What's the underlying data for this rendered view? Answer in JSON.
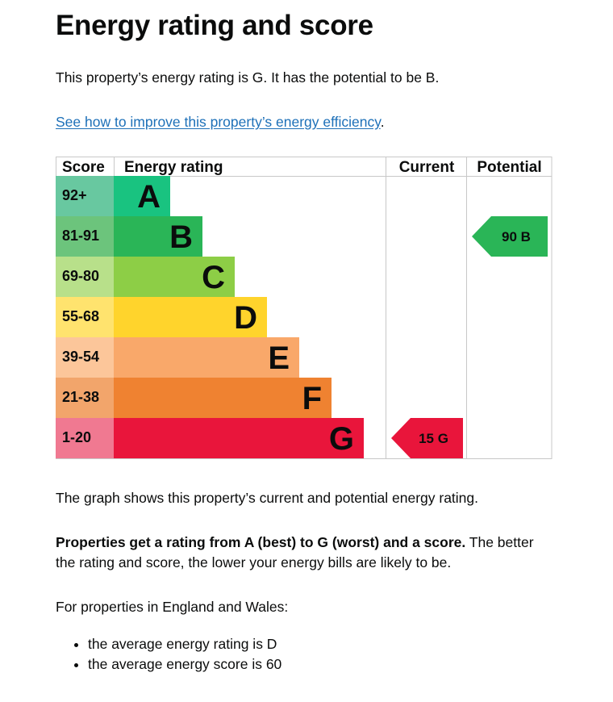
{
  "page": {
    "title": "Energy rating and score",
    "intro": "This property’s energy rating is G. It has the potential to be B.",
    "improve_link": "See how to improve this property’s energy efficiency",
    "improve_link_suffix": ".",
    "graph_description": "The graph shows this property’s current and potential energy rating.",
    "properties_bold": "Properties get a rating from A (best) to G (worst) and a score.",
    "properties_rest": " The better the rating and score, the lower your energy bills are likely to be.",
    "region_intro": "For properties in England and Wales:",
    "averages": [
      "the average energy rating is D",
      "the average energy score is 60"
    ]
  },
  "chart_data": {
    "type": "table",
    "headers": {
      "score": "Score",
      "rating": "Energy rating",
      "current": "Current",
      "potential": "Potential"
    },
    "bands": [
      {
        "score": "92+",
        "letter": "A",
        "score_bg": "#68c8a0",
        "bar": "#19c380"
      },
      {
        "score": "81-91",
        "letter": "B",
        "score_bg": "#6cc47c",
        "bar": "#2ab557"
      },
      {
        "score": "69-80",
        "letter": "C",
        "score_bg": "#b8e08a",
        "bar": "#8dce46"
      },
      {
        "score": "55-68",
        "letter": "D",
        "score_bg": "#ffe36e",
        "bar": "#ffd42c"
      },
      {
        "score": "39-54",
        "letter": "E",
        "score_bg": "#fcc69a",
        "bar": "#f9a86a"
      },
      {
        "score": "21-38",
        "letter": "F",
        "score_bg": "#f2a56b",
        "bar": "#ef8231"
      },
      {
        "score": "1-20",
        "letter": "G",
        "score_bg": "#f07991",
        "bar": "#e9153b"
      }
    ],
    "current": {
      "score": 15,
      "letter": "G",
      "label": "15  G",
      "color": "#e9153b"
    },
    "potential": {
      "score": 90,
      "letter": "B",
      "label": "90  B",
      "color": "#2ab557"
    }
  }
}
